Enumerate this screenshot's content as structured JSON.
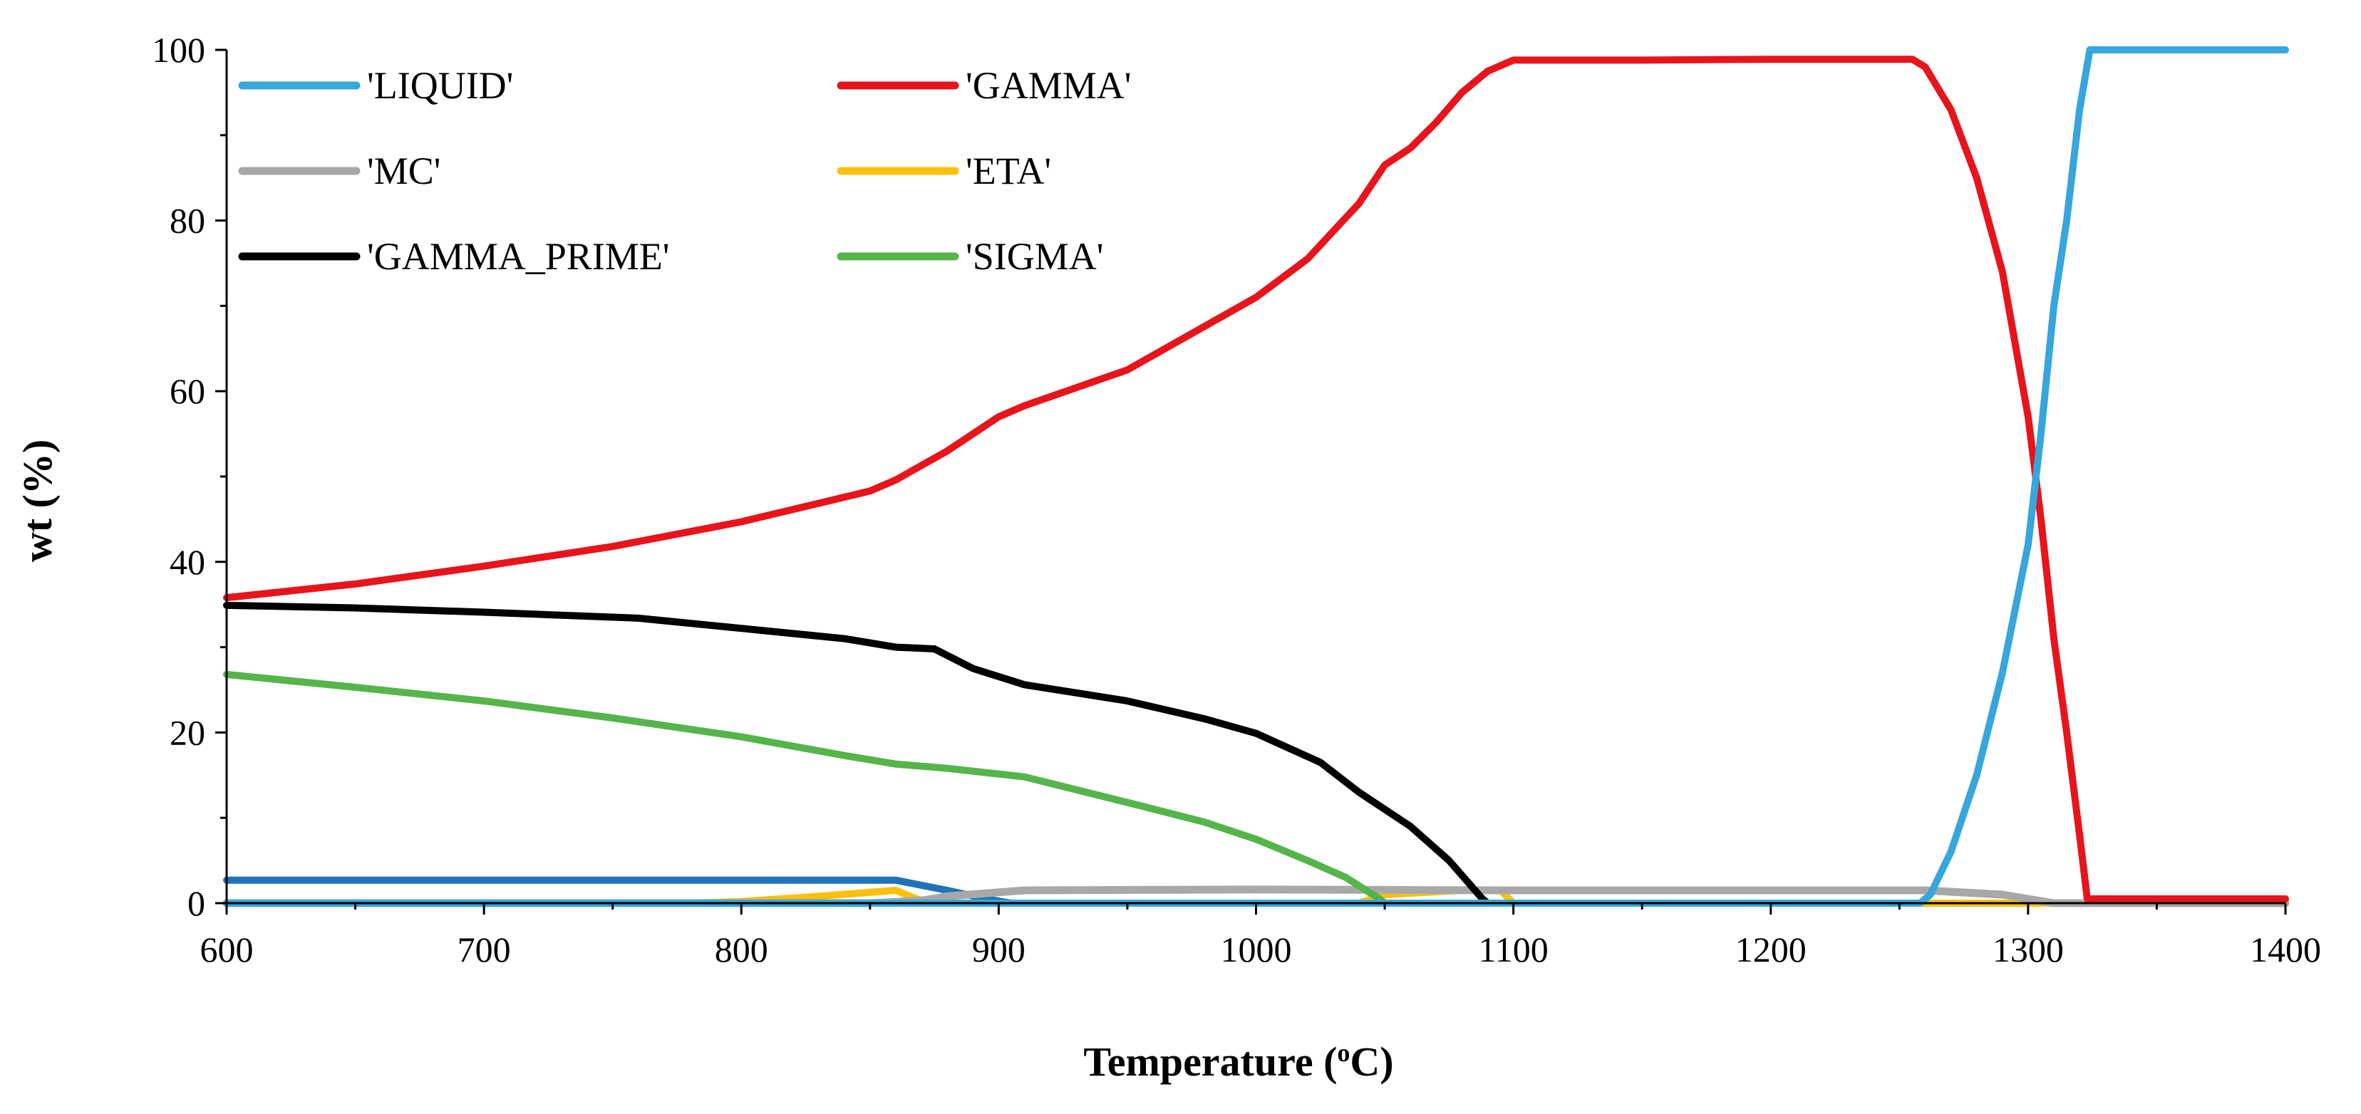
{
  "chart_data": {
    "type": "line",
    "xlabel": "Temperature (°C)",
    "xlabel_main": "Temperature (",
    "xlabel_sup": "o",
    "xlabel_tail": "C)",
    "ylabel": "wt (%)",
    "xlim": [
      600,
      1400
    ],
    "ylim": [
      0,
      100
    ],
    "xticks": [
      600,
      700,
      800,
      900,
      1000,
      1100,
      1200,
      1300,
      1400
    ],
    "yticks": [
      0,
      20,
      40,
      60,
      80,
      100
    ],
    "legend_placement": "top-left",
    "grid": false,
    "series": [
      {
        "name": "'LIQUID'",
        "color": "#36a6dc",
        "points": [
          [
            600,
            0
          ],
          [
            1258,
            0
          ],
          [
            1262,
            1
          ],
          [
            1270,
            6
          ],
          [
            1280,
            15
          ],
          [
            1290,
            27
          ],
          [
            1300,
            42
          ],
          [
            1305,
            55
          ],
          [
            1310,
            70
          ],
          [
            1315,
            80
          ],
          [
            1320,
            93
          ],
          [
            1324,
            100
          ],
          [
            1400,
            100
          ]
        ]
      },
      {
        "name": "'GAMMA'",
        "color": "#e8141c",
        "points": [
          [
            600,
            35.8
          ],
          [
            650,
            37.4
          ],
          [
            700,
            39.5
          ],
          [
            750,
            41.8
          ],
          [
            800,
            44.7
          ],
          [
            850,
            48.3
          ],
          [
            860,
            49.6
          ],
          [
            880,
            53
          ],
          [
            900,
            57
          ],
          [
            910,
            58.3
          ],
          [
            950,
            62.5
          ],
          [
            1000,
            71
          ],
          [
            1020,
            75.5
          ],
          [
            1040,
            82
          ],
          [
            1050,
            86.5
          ],
          [
            1060,
            88.5
          ],
          [
            1070,
            91.5
          ],
          [
            1080,
            95
          ],
          [
            1090,
            97.5
          ],
          [
            1100,
            98.8
          ],
          [
            1150,
            98.8
          ],
          [
            1200,
            98.9
          ],
          [
            1255,
            98.9
          ],
          [
            1260,
            98
          ],
          [
            1270,
            93
          ],
          [
            1280,
            85
          ],
          [
            1290,
            74
          ],
          [
            1300,
            57
          ],
          [
            1305,
            45
          ],
          [
            1310,
            31
          ],
          [
            1315,
            20
          ],
          [
            1320,
            8
          ],
          [
            1323,
            0.5
          ],
          [
            1330,
            0.5
          ],
          [
            1400,
            0.5
          ]
        ]
      },
      {
        "name": "'MC'",
        "color": "#a8a8a8",
        "points": [
          [
            600,
            0
          ],
          [
            850,
            0
          ],
          [
            870,
            0.3
          ],
          [
            880,
            0.8
          ],
          [
            910,
            1.5
          ],
          [
            1000,
            1.6
          ],
          [
            1100,
            1.5
          ],
          [
            1200,
            1.5
          ],
          [
            1260,
            1.5
          ],
          [
            1290,
            1
          ],
          [
            1300,
            0.5
          ],
          [
            1310,
            0
          ],
          [
            1400,
            0
          ]
        ]
      },
      {
        "name": "'ETA'",
        "color": "#fcc00a",
        "points": [
          [
            600,
            0
          ],
          [
            780,
            0
          ],
          [
            800,
            0.2
          ],
          [
            830,
            0.8
          ],
          [
            860,
            1.5
          ],
          [
            868,
            0.5
          ],
          [
            875,
            0
          ],
          [
            1040,
            0
          ],
          [
            1050,
            1
          ],
          [
            1080,
            1.5
          ],
          [
            1095,
            1.5
          ],
          [
            1100,
            0
          ],
          [
            1400,
            0
          ]
        ]
      },
      {
        "name": "'GAMMA_PRIME'",
        "color": "#000000",
        "points": [
          [
            600,
            34.9
          ],
          [
            650,
            34.6
          ],
          [
            700,
            34.1
          ],
          [
            760,
            33.4
          ],
          [
            800,
            32.2
          ],
          [
            840,
            31
          ],
          [
            860,
            30
          ],
          [
            875,
            29.8
          ],
          [
            890,
            27.5
          ],
          [
            910,
            25.6
          ],
          [
            950,
            23.7
          ],
          [
            980,
            21.6
          ],
          [
            1000,
            19.9
          ],
          [
            1025,
            16.5
          ],
          [
            1040,
            13
          ],
          [
            1060,
            9
          ],
          [
            1075,
            5
          ],
          [
            1088,
            0.5
          ],
          [
            1090,
            0
          ]
        ]
      },
      {
        "name": "'SIGMA'",
        "color": "#55b54a",
        "points": [
          [
            600,
            26.8
          ],
          [
            650,
            25.3
          ],
          [
            700,
            23.7
          ],
          [
            750,
            21.7
          ],
          [
            800,
            19.5
          ],
          [
            840,
            17.3
          ],
          [
            860,
            16.3
          ],
          [
            880,
            15.8
          ],
          [
            910,
            14.8
          ],
          [
            950,
            11.8
          ],
          [
            980,
            9.5
          ],
          [
            1000,
            7.5
          ],
          [
            1020,
            5
          ],
          [
            1035,
            3
          ],
          [
            1048,
            0.5
          ],
          [
            1050,
            0
          ]
        ]
      },
      {
        "name": "",
        "color": "#1f73b7",
        "points": [
          [
            600,
            2.7
          ],
          [
            860,
            2.7
          ],
          [
            880,
            1.5
          ],
          [
            895,
            0.5
          ],
          [
            905,
            0
          ],
          [
            1400,
            0
          ]
        ]
      }
    ]
  }
}
